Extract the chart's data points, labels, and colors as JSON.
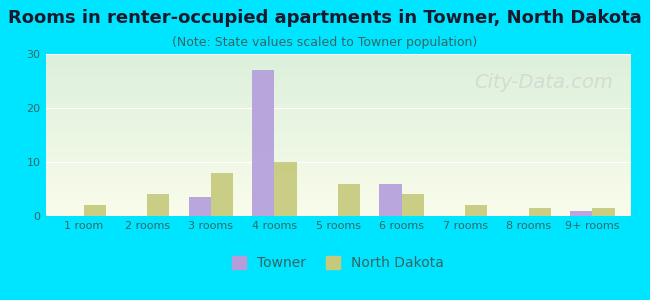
{
  "title": "Rooms in renter-occupied apartments in Towner, North Dakota",
  "subtitle": "(Note: State values scaled to Towner population)",
  "categories": [
    "1 room",
    "2 rooms",
    "3 rooms",
    "4 rooms",
    "5 rooms",
    "6 rooms",
    "7 rooms",
    "8 rooms",
    "9+ rooms"
  ],
  "towner_values": [
    0,
    0,
    3.5,
    27,
    0,
    6,
    0,
    0,
    1
  ],
  "nd_values": [
    2,
    4,
    8,
    10,
    6,
    4,
    2,
    1.5,
    1.5
  ],
  "towner_color": "#b39ddb",
  "nd_color": "#c5c97a",
  "background_outer": "#00e5ff",
  "ylim": [
    0,
    30
  ],
  "yticks": [
    0,
    10,
    20,
    30
  ],
  "bar_width": 0.35,
  "figsize": [
    6.5,
    3.0
  ],
  "dpi": 100,
  "title_fontsize": 13,
  "subtitle_fontsize": 9,
  "tick_fontsize": 8,
  "legend_fontsize": 10,
  "watermark_text": "City-Data.com",
  "watermark_color": "#cccccc",
  "watermark_fontsize": 14
}
